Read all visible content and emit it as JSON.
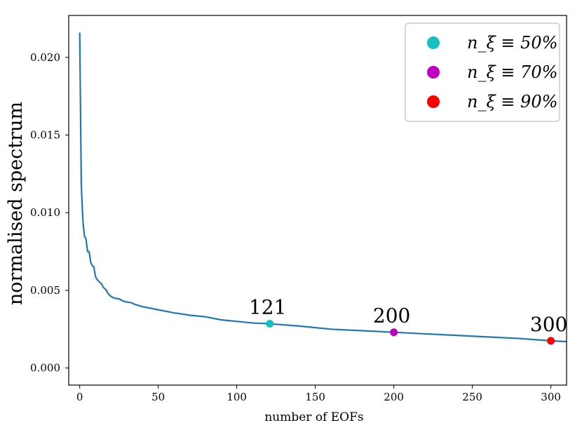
{
  "chart_data": {
    "type": "line",
    "xlabel": "number of EOFs",
    "ylabel": "normalised spectrum",
    "xlim": [
      -7,
      310
    ],
    "ylim": [
      -0.0011,
      0.0227
    ],
    "x_ticks": [
      0,
      50,
      100,
      150,
      200,
      250,
      300
    ],
    "x_tick_labels": [
      "0",
      "50",
      "100",
      "150",
      "200",
      "250",
      "300"
    ],
    "y_ticks": [
      0.0,
      0.005,
      0.01,
      0.015,
      0.02
    ],
    "y_tick_labels": [
      "0.000",
      "0.005",
      "0.010",
      "0.015",
      "0.020"
    ],
    "grid": false,
    "legend_position": "top-right",
    "line_color": "#1f77b4",
    "series": [
      {
        "x": [
          0,
          1,
          2,
          3,
          4,
          5,
          6,
          7,
          8,
          9,
          10,
          11,
          12,
          13,
          14,
          15,
          16,
          17,
          18,
          19,
          20,
          22,
          25,
          28,
          30,
          33,
          35,
          40,
          45,
          50,
          55,
          60,
          65,
          70,
          80,
          90,
          100,
          110,
          121,
          140,
          160,
          180,
          200,
          220,
          240,
          260,
          280,
          300,
          310
        ],
        "y": [
          0.0216,
          0.0118,
          0.0095,
          0.0085,
          0.0083,
          0.0075,
          0.0075,
          0.0068,
          0.0066,
          0.0065,
          0.0059,
          0.0057,
          0.0056,
          0.0055,
          0.0054,
          0.0052,
          0.0051,
          0.005,
          0.0048,
          0.0047,
          0.0046,
          0.0045,
          0.00445,
          0.0043,
          0.00425,
          0.0042,
          0.0041,
          0.00395,
          0.00385,
          0.00375,
          0.00365,
          0.00355,
          0.00348,
          0.0034,
          0.0033,
          0.0031,
          0.003,
          0.0029,
          0.00285,
          0.0027,
          0.0025,
          0.0024,
          0.0023,
          0.0022,
          0.0021,
          0.002,
          0.0019,
          0.00175,
          0.0017
        ]
      }
    ],
    "markers": [
      {
        "x": 121,
        "y": 0.00285,
        "color": "#17bfbf",
        "annotation": "121",
        "legend": "n_ξ ≡ 50%"
      },
      {
        "x": 200,
        "y": 0.0023,
        "color": "#bf00bf",
        "annotation": "200",
        "legend": "n_ξ ≡ 70%"
      },
      {
        "x": 300,
        "y": 0.00175,
        "color": "#ff0000",
        "annotation": "300",
        "legend": "n_ξ ≡ 90%"
      }
    ]
  }
}
